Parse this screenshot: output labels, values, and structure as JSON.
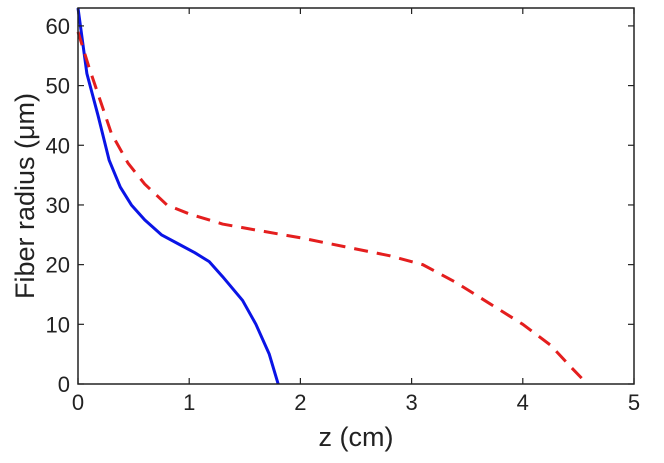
{
  "chart_data": {
    "type": "line",
    "title": "",
    "xlabel": "z (cm)",
    "ylabel": "Fiber radius (μm)",
    "xlim": [
      0,
      5
    ],
    "ylim": [
      0,
      63
    ],
    "xticks": [
      0,
      1,
      2,
      3,
      4,
      5
    ],
    "yticks": [
      0,
      10,
      20,
      30,
      40,
      50,
      60
    ],
    "xtick_labels": [
      "0",
      "1",
      "2",
      "3",
      "4",
      "5"
    ],
    "ytick_labels": [
      "0",
      "10",
      "20",
      "30",
      "40",
      "50",
      "60"
    ],
    "grid": false,
    "legend": "none",
    "series": [
      {
        "style": "solid",
        "color": "#0a14e6",
        "x": [
          0,
          0.08,
          0.18,
          0.28,
          0.38,
          0.48,
          0.6,
          0.75,
          0.9,
          1.05,
          1.18,
          1.3,
          1.48,
          1.6,
          1.72,
          1.8
        ],
        "y": [
          63,
          52,
          45,
          37.5,
          33,
          30,
          27.5,
          25,
          23.5,
          22,
          20.5,
          18,
          14,
          10,
          5,
          0
        ]
      },
      {
        "style": "dashed",
        "color": "#e41e1e",
        "x": [
          0,
          0.1,
          0.2,
          0.3,
          0.45,
          0.6,
          0.8,
          1.0,
          1.3,
          1.6,
          2.0,
          2.4,
          2.8,
          3.1,
          3.4,
          3.7,
          4.0,
          4.25,
          4.45,
          4.58
        ],
        "y": [
          59,
          53,
          47.5,
          42,
          37,
          33.5,
          30,
          28.5,
          26.8,
          25.8,
          24.5,
          23,
          21.5,
          20,
          17,
          13.5,
          10,
          6.5,
          2.5,
          0
        ]
      }
    ]
  },
  "colors": {
    "axis": "#222222",
    "background": "#ffffff"
  }
}
